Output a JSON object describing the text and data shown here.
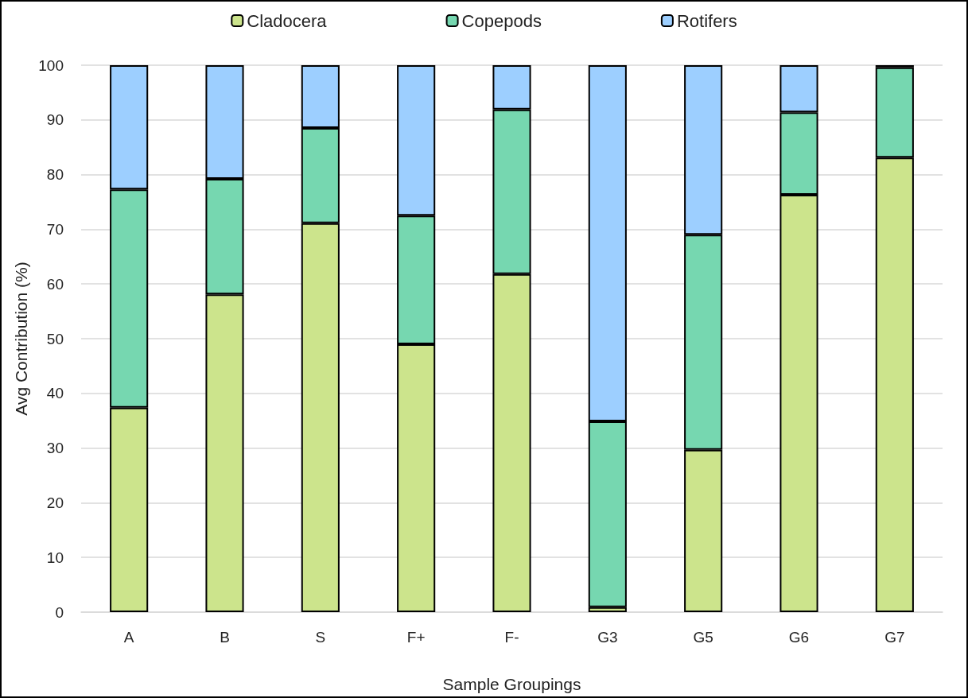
{
  "chart_data": {
    "type": "bar",
    "stacked": true,
    "xlabel": "Sample Groupings",
    "ylabel": "Avg Contribution (%)",
    "categories": [
      "A",
      "B",
      "S",
      "F+",
      "F-",
      "G3",
      "G5",
      "G6",
      "G7"
    ],
    "series": [
      {
        "name": "Cladocera",
        "color": "#cce48c",
        "values": [
          37.4,
          58.1,
          71.1,
          49.0,
          61.8,
          0.9,
          29.7,
          76.3,
          83.1
        ]
      },
      {
        "name": "Copepods",
        "color": "#76d7b0",
        "values": [
          39.9,
          21.1,
          17.4,
          23.5,
          30.1,
          34.0,
          39.3,
          15.1,
          16.5
        ]
      },
      {
        "name": "Rotifers",
        "color": "#9dcfff",
        "values": [
          22.7,
          20.8,
          11.5,
          27.5,
          8.1,
          65.1,
          31.0,
          8.6,
          0.4
        ]
      }
    ],
    "ylim": [
      0,
      100
    ],
    "yticks": [
      0,
      10,
      20,
      30,
      40,
      50,
      60,
      70,
      80,
      90,
      100
    ],
    "grid": "y",
    "legend": "top"
  }
}
